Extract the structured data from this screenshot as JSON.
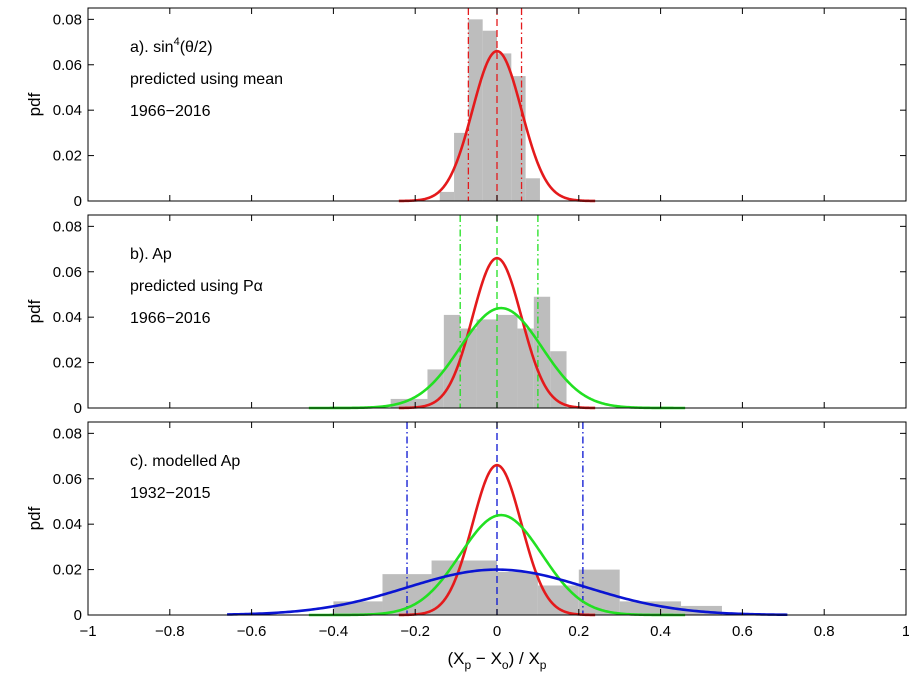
{
  "figure": {
    "xlabel_parts": [
      "(X",
      "p",
      " − X",
      "o",
      ") / X",
      "p"
    ],
    "ylabel": "pdf",
    "xlim": [
      -1,
      1
    ],
    "ylim": [
      0,
      0.085
    ],
    "xticks": [
      -1,
      -0.8,
      -0.6,
      -0.4,
      -0.2,
      0,
      0.2,
      0.4,
      0.6,
      0.8,
      1
    ],
    "xtick_labels": [
      "−1",
      "−0.8",
      "−0.6",
      "−0.4",
      "−0.2",
      "0",
      "0.2",
      "0.4",
      "0.6",
      "0.8",
      "1"
    ],
    "yticks": [
      0,
      0.02,
      0.04,
      0.06,
      0.08
    ],
    "ytick_labels": [
      "0",
      "0.02",
      "0.04",
      "0.06",
      "0.08"
    ],
    "colors": {
      "hist": "#bdbdbd",
      "red": "#e41a1c",
      "green": "#22e022",
      "blue": "#0a14d2"
    }
  },
  "chart_data": [
    {
      "type": "bar",
      "panel": "a",
      "annotations": [
        {
          "base": "a). sin",
          "sup": "4",
          "tail": "(θ/2)"
        },
        {
          "base": "predicted using mean",
          "sup": "",
          "tail": ""
        },
        {
          "base": "1966−2016",
          "sup": "",
          "tail": ""
        }
      ],
      "histogram": {
        "edges": [
          -0.14,
          -0.105,
          -0.07,
          -0.035,
          0,
          0.035,
          0.07,
          0.105,
          0.14
        ],
        "values": [
          0.004,
          0.03,
          0.08,
          0.075,
          0.065,
          0.055,
          0.01,
          0
        ]
      },
      "curves": [
        {
          "color": "red",
          "mean": 0,
          "sd": 0.06,
          "peak": 0.066,
          "range": [
            -0.24,
            0.24
          ]
        }
      ],
      "vlines": [
        {
          "x": 0,
          "color": "red",
          "style": "dashed"
        },
        {
          "x": -0.07,
          "color": "red",
          "style": "dashdot"
        },
        {
          "x": 0.06,
          "color": "red",
          "style": "dashdot"
        }
      ]
    },
    {
      "type": "bar",
      "panel": "b",
      "annotations": [
        {
          "base": "b). Ap",
          "sup": "",
          "tail": ""
        },
        {
          "base": "predicted using Pα",
          "sup": "",
          "tail": ""
        },
        {
          "base": "1966−2016",
          "sup": "",
          "tail": ""
        }
      ],
      "histogram": {
        "edges": [
          -0.26,
          -0.17,
          -0.13,
          -0.09,
          -0.05,
          0,
          0.05,
          0.09,
          0.13,
          0.17
        ],
        "values": [
          0.004,
          0.017,
          0.041,
          0.035,
          0.039,
          0.041,
          0.035,
          0.049,
          0.025
        ]
      },
      "curves": [
        {
          "color": "red",
          "mean": 0,
          "sd": 0.06,
          "peak": 0.066,
          "range": [
            -0.24,
            0.24
          ]
        },
        {
          "color": "green",
          "mean": 0.01,
          "sd": 0.1,
          "peak": 0.044,
          "range": [
            -0.46,
            0.46
          ]
        }
      ],
      "vlines": [
        {
          "x": 0,
          "color": "green",
          "style": "dashed"
        },
        {
          "x": -0.09,
          "color": "green",
          "style": "dashdot"
        },
        {
          "x": 0.1,
          "color": "green",
          "style": "dashdot"
        }
      ]
    },
    {
      "type": "bar",
      "panel": "c",
      "annotations": [
        {
          "base": "c). modelled Ap",
          "sup": "",
          "tail": ""
        },
        {
          "base": "1932−2015",
          "sup": "",
          "tail": ""
        }
      ],
      "histogram": {
        "edges": [
          -0.4,
          -0.28,
          -0.16,
          0,
          0.1,
          0.2,
          0.3,
          0.45,
          0.55
        ],
        "values": [
          0.006,
          0.018,
          0.024,
          0.019,
          0.013,
          0.02,
          0.006,
          0.004
        ]
      },
      "curves": [
        {
          "color": "red",
          "mean": 0,
          "sd": 0.06,
          "peak": 0.066,
          "range": [
            -0.24,
            0.24
          ]
        },
        {
          "color": "green",
          "mean": 0.01,
          "sd": 0.1,
          "peak": 0.044,
          "range": [
            -0.46,
            0.46
          ]
        },
        {
          "color": "blue",
          "mean": 0,
          "sd": 0.22,
          "peak": 0.02,
          "range": [
            -0.66,
            0.71
          ]
        }
      ],
      "vlines": [
        {
          "x": 0,
          "color": "blue",
          "style": "dashed"
        },
        {
          "x": -0.22,
          "color": "blue",
          "style": "dashdot"
        },
        {
          "x": 0.21,
          "color": "blue",
          "style": "dashdot"
        }
      ]
    }
  ]
}
